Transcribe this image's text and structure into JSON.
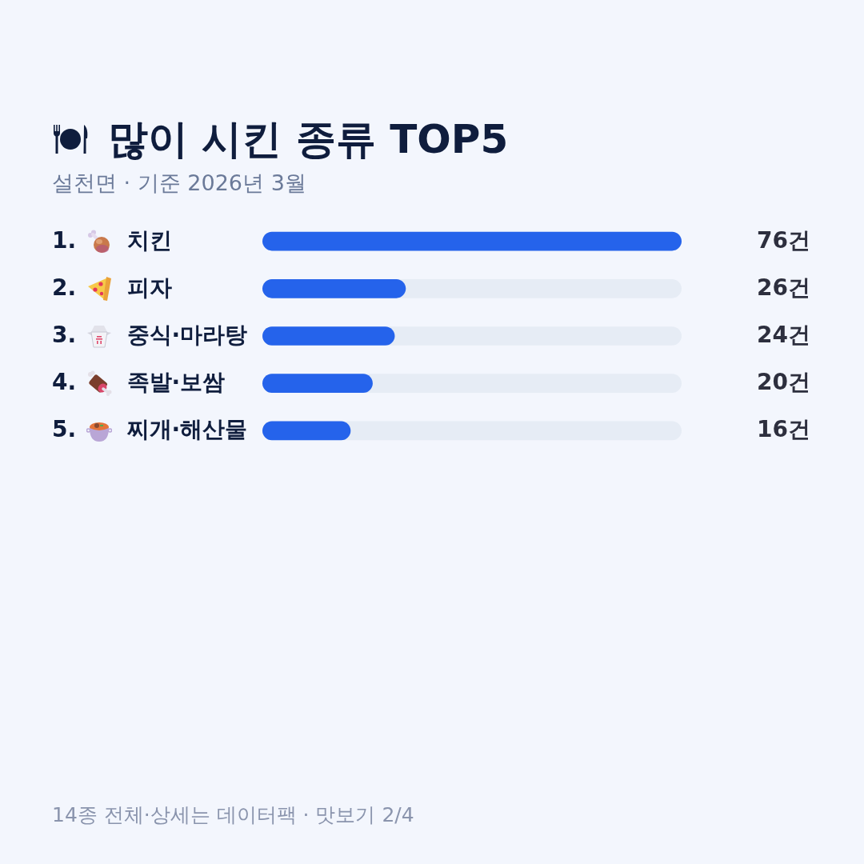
{
  "chart_data": {
    "type": "bar",
    "orientation": "horizontal",
    "title": "많이 시킨 종류 TOP5",
    "subtitle": "설천면 · 기준 2026년 3월",
    "categories": [
      "치킨",
      "피자",
      "중식·마라탕",
      "족발·보쌈",
      "찌개·해산물"
    ],
    "values": [
      76,
      26,
      24,
      20,
      16
    ],
    "value_labels": [
      "76건",
      "26건",
      "24건",
      "20건",
      "16건"
    ],
    "color": "#2563eb",
    "xlim": [
      0,
      76
    ],
    "tick_labels": "y",
    "annotations": [
      "1.",
      "2.",
      "3.",
      "4.",
      "5.",
      "14종 전체·상세는 데이터팩 · 맛보기 2/4"
    ]
  }
}
